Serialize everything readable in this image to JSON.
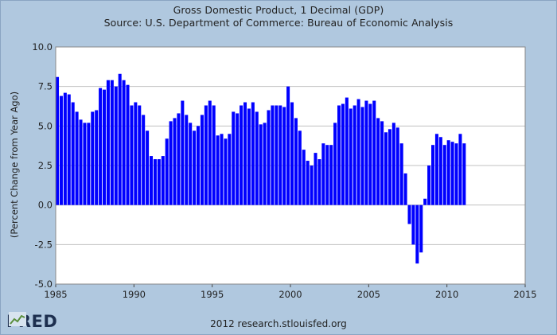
{
  "header": {
    "title": "Gross Domestic Product, 1 Decimal (GDP)",
    "subtitle": "Source: U.S. Department of Commerce: Bureau of Economic Analysis"
  },
  "footer": {
    "logo_text": "FRED",
    "credit": "2012 research.stlouisfed.org"
  },
  "colors": {
    "bar": "#0000ff",
    "plot_bg": "#ffffff",
    "grid": "#c0c0c0",
    "page_bg": "#b0c8df"
  },
  "chart_data": {
    "type": "bar",
    "title": "Gross Domestic Product, 1 Decimal (GDP)",
    "subtitle": "Source: U.S. Department of Commerce: Bureau of Economic Analysis",
    "ylabel": "(Percent Change from Year Ago)",
    "xlabel": "",
    "xlim": [
      1985,
      2015
    ],
    "ylim": [
      -5.0,
      10.0
    ],
    "grid": true,
    "x_ticks": [
      "1985",
      "1990",
      "1995",
      "2000",
      "2005",
      "2010",
      "2015"
    ],
    "y_ticks": [
      "-5.0",
      "-2.5",
      "0.0",
      "2.5",
      "5.0",
      "7.5",
      "10.0"
    ],
    "frequency": "quarterly",
    "start": "1985 Q1",
    "series": [
      {
        "values": [
          8.1,
          6.9,
          7.1,
          7.0,
          6.5,
          5.9,
          5.4,
          5.2,
          5.2,
          5.9,
          6.0,
          7.4,
          7.3,
          7.9,
          7.9,
          7.5,
          8.3,
          7.9,
          7.6,
          6.3,
          6.5,
          6.3,
          5.7,
          4.7,
          3.1,
          2.9,
          2.9,
          3.1,
          4.2,
          5.3,
          5.5,
          5.8,
          6.6,
          5.7,
          5.2,
          4.7,
          5.0,
          5.7,
          6.3,
          6.6,
          6.3,
          4.4,
          4.5,
          4.2,
          4.5,
          5.9,
          5.8,
          6.3,
          6.5,
          6.1,
          6.5,
          5.9,
          5.1,
          5.2,
          6.0,
          6.3,
          6.3,
          6.3,
          6.2,
          7.5,
          6.5,
          5.5,
          4.7,
          3.5,
          2.8,
          2.5,
          3.3,
          2.9,
          3.9,
          3.8,
          3.8,
          5.2,
          6.3,
          6.4,
          6.8,
          6.1,
          6.3,
          6.7,
          6.2,
          6.6,
          6.4,
          6.6,
          5.5,
          5.3,
          4.6,
          4.8,
          5.2,
          4.9,
          3.9,
          2.0,
          -1.2,
          -2.5,
          -3.7,
          -3.0,
          0.4,
          2.5,
          3.8,
          4.5,
          4.3,
          3.8,
          4.1,
          4.0,
          3.9,
          4.5,
          3.9
        ]
      }
    ]
  }
}
